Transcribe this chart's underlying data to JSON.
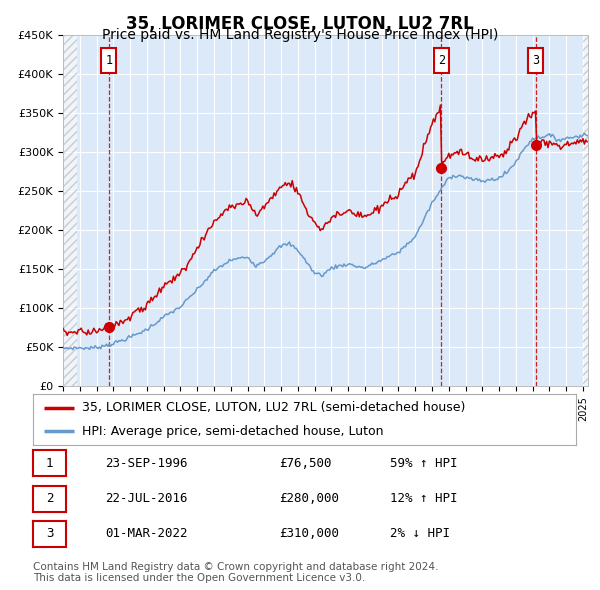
{
  "title": "35, LORIMER CLOSE, LUTON, LU2 7RL",
  "subtitle": "Price paid vs. HM Land Registry's House Price Index (HPI)",
  "ylim": [
    0,
    450000
  ],
  "yticks": [
    0,
    50000,
    100000,
    150000,
    200000,
    250000,
    300000,
    350000,
    400000,
    450000
  ],
  "ytick_labels": [
    "£0",
    "£50K",
    "£100K",
    "£150K",
    "£200K",
    "£250K",
    "£300K",
    "£350K",
    "£400K",
    "£450K"
  ],
  "xlim_start": 1994.0,
  "xlim_end": 2025.3,
  "plot_bg_color": "#dce9f8",
  "hpi_line_color": "#6699cc",
  "price_line_color": "#cc0000",
  "marker_color": "#cc0000",
  "vline_color": "#cc0000",
  "sale_dates": [
    1996.73,
    2016.56,
    2022.17
  ],
  "sale_prices": [
    76500,
    280000,
    310000
  ],
  "sale_labels": [
    "1",
    "2",
    "3"
  ],
  "legend_line1": "35, LORIMER CLOSE, LUTON, LU2 7RL (semi-detached house)",
  "legend_line2": "HPI: Average price, semi-detached house, Luton",
  "table_entries": [
    {
      "num": "1",
      "date": "23-SEP-1996",
      "price": "£76,500",
      "hpi": "59% ↑ HPI"
    },
    {
      "num": "2",
      "date": "22-JUL-2016",
      "price": "£280,000",
      "hpi": "12% ↑ HPI"
    },
    {
      "num": "3",
      "date": "01-MAR-2022",
      "price": "£310,000",
      "hpi": "2% ↓ HPI"
    }
  ],
  "footnote": "Contains HM Land Registry data © Crown copyright and database right 2024.\nThis data is licensed under the Open Government Licence v3.0.",
  "title_fontsize": 12,
  "subtitle_fontsize": 10,
  "tick_fontsize": 8,
  "legend_fontsize": 9,
  "table_fontsize": 9,
  "footnote_fontsize": 7.5
}
